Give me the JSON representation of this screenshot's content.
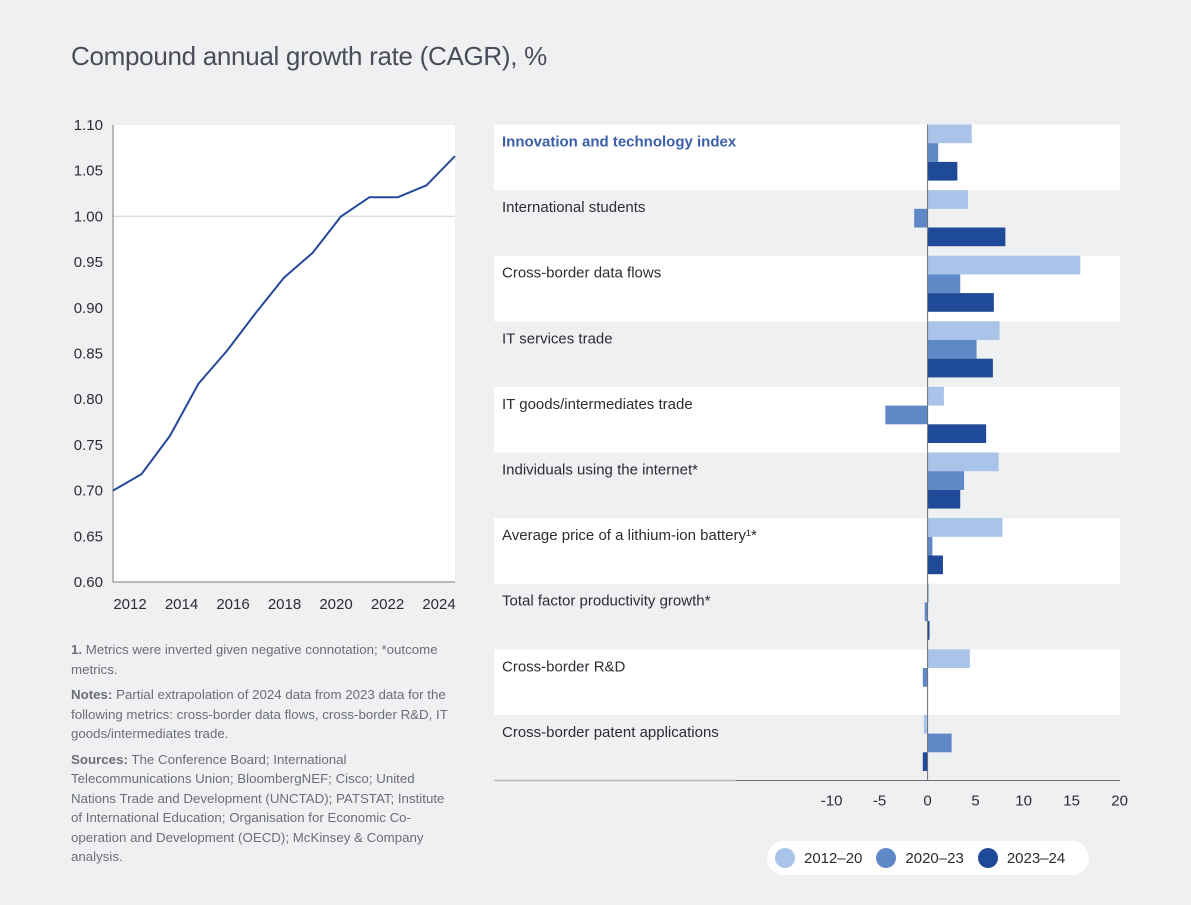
{
  "title": "Compound annual growth rate (CAGR), %",
  "colors": {
    "line": "#26499a",
    "series": [
      "#a9c4e8",
      "#5f88c6",
      "#1f4a98"
    ],
    "highlight_label": "#3a5fa8"
  },
  "chart_data": [
    {
      "type": "line",
      "title": "",
      "xlabel": "",
      "ylabel": "",
      "x": [
        2012,
        2013,
        2014,
        2015,
        2016,
        2017,
        2018,
        2019,
        2020,
        2021,
        2022,
        2023,
        2024
      ],
      "series": [
        {
          "name": "Innovation and technology index",
          "values": [
            0.7,
            0.718,
            0.76,
            0.817,
            0.853,
            0.894,
            0.933,
            0.96,
            1.0,
            1.021,
            1.021,
            1.034,
            1.066
          ]
        }
      ],
      "x_tick_labels": [
        "2012",
        "2014",
        "2016",
        "2018",
        "2020",
        "2022",
        "2024"
      ],
      "y_tick_labels": [
        "0.60",
        "0.65",
        "0.70",
        "0.75",
        "0.80",
        "0.85",
        "0.90",
        "0.95",
        "1.00",
        "1.05",
        "1.10"
      ],
      "ylim": [
        0.6,
        1.1
      ],
      "reference_line": 1.0,
      "grid": false
    },
    {
      "type": "bar",
      "orientation": "horizontal",
      "title": "",
      "xlabel": "",
      "ylabel": "",
      "categories": [
        "Innovation and technology index",
        "International students",
        "Cross-border data flows",
        "IT services trade",
        "IT goods/intermediates trade",
        "Individuals using the internet*",
        "Average price of a lithium-ion battery¹*",
        "Total factor productivity growth*",
        "Cross-border R&D",
        "Cross-border patent applications"
      ],
      "highlight_category": 0,
      "series": [
        {
          "name": "2012–20",
          "values": [
            4.6,
            4.2,
            15.9,
            7.5,
            1.7,
            7.4,
            7.8,
            0.1,
            4.4,
            -0.4
          ]
        },
        {
          "name": "2020–23",
          "values": [
            1.1,
            -1.4,
            3.4,
            5.1,
            -4.4,
            3.8,
            0.5,
            -0.3,
            -0.5,
            2.5
          ]
        },
        {
          "name": "2023–24",
          "values": [
            3.1,
            8.1,
            6.9,
            6.8,
            6.1,
            3.4,
            1.6,
            0.2,
            0.0,
            -0.5
          ]
        }
      ],
      "x_tick_labels": [
        "-10",
        "-5",
        "0",
        "5",
        "10",
        "15",
        "20"
      ],
      "xlim": [
        -10,
        20
      ],
      "legend_position": "bottom-right"
    }
  ],
  "legend": [
    {
      "label": "2012–20"
    },
    {
      "label": "2020–23"
    },
    {
      "label": "2023–24"
    }
  ],
  "notes": {
    "footnote_marker": "1.",
    "footnote_text": "Metrics were inverted given negative connotation; *outcome metrics.",
    "notes_label": "Notes:",
    "notes_text": "Partial extrapolation of 2024 data from 2023 data for the following metrics: cross-border data flows, cross-border R&D, IT goods/intermediates trade.",
    "sources_label": "Sources:",
    "sources_text": "The Conference Board; International Telecommunications Union; BloombergNEF; Cisco; United Nations Trade and Development (UNCTAD); PATSTAT; Institute of International Education; Organisation for Economic Co-operation and Development (OECD); McKinsey & Company analysis."
  }
}
